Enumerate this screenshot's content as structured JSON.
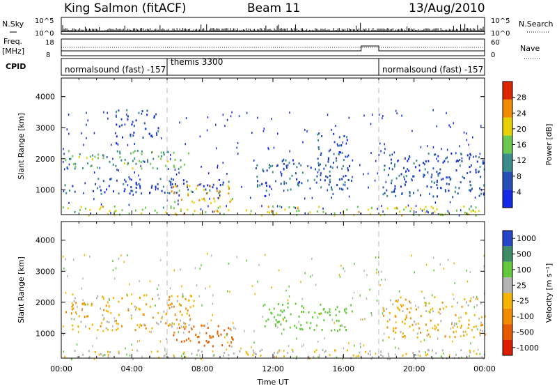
{
  "header": {
    "station": "King Salmon (fitACF)",
    "beam": "Beam 11",
    "date": "13/Aug/2010"
  },
  "status_panels": {
    "nsky_label": "N.Sky",
    "nsearch_label": "N.Search",
    "nsky_ticks": [
      "10^5",
      "10^0"
    ],
    "nsky_right_ticks": [
      "10^5",
      "10^0"
    ],
    "freq_label_1": "Freq.",
    "freq_label_2": "[MHz]",
    "freq_ticks": [
      "18",
      "8"
    ],
    "nave_label": "Nave",
    "nave_ticks": [
      "60",
      "0"
    ],
    "cpid_label": "CPID",
    "cpid_segments": [
      {
        "label": "normalsound (fast) -157",
        "start_hour": 0,
        "end_hour": 6
      },
      {
        "label": "themis 3300",
        "start_hour": 6,
        "end_hour": 18
      },
      {
        "label": "normalsound (fast) -157",
        "start_hour": 18,
        "end_hour": 24
      }
    ]
  },
  "chart_data": [
    {
      "type": "heatmap",
      "name": "power-panel",
      "ylabel": "Slant Range [km]",
      "yticks": [
        "1000",
        "2000",
        "3000",
        "4000"
      ],
      "ylim": [
        200,
        4600
      ],
      "xlim": [
        0,
        24
      ],
      "colorbar_label": "Power [dB]",
      "colorbar_ticks": [
        "4",
        "8",
        "12",
        "16",
        "20",
        "24",
        "28"
      ],
      "colorbar_range": [
        0,
        32
      ],
      "colors": [
        "#1428e6",
        "#2850b4",
        "#3c8c8c",
        "#6cc850",
        "#e6d200",
        "#f08c00",
        "#dc2800"
      ],
      "regions": [
        {
          "t0": 0.2,
          "t1": 7.5,
          "r0": 1700,
          "r1": 2300,
          "value": 14
        },
        {
          "t0": 0.1,
          "t1": 9.5,
          "r0": 900,
          "r1": 1400,
          "value": 6
        },
        {
          "t0": 6.2,
          "t1": 9.8,
          "r0": 600,
          "r1": 1200,
          "value": 22
        },
        {
          "t0": 3.0,
          "t1": 5.5,
          "r0": 2700,
          "r1": 3600,
          "value": 6
        },
        {
          "t0": 11.0,
          "t1": 16.5,
          "r0": 1000,
          "r1": 2000,
          "value": 8
        },
        {
          "t0": 14.5,
          "t1": 16.2,
          "r0": 1900,
          "r1": 2900,
          "value": 6
        },
        {
          "t0": 18.2,
          "t1": 24,
          "r0": 800,
          "r1": 2200,
          "value": 7
        },
        {
          "t0": 0,
          "t1": 24,
          "r0": 200,
          "r1": 500,
          "value": 18
        }
      ]
    },
    {
      "type": "heatmap",
      "name": "velocity-panel",
      "xlabel": "Time UT",
      "xticks": [
        "00:00",
        "04:00",
        "08:00",
        "12:00",
        "16:00",
        "20:00",
        "00:00"
      ],
      "ylabel": "Slant Range [km]",
      "yticks": [
        "1000",
        "2000",
        "3000",
        "4000"
      ],
      "ylim": [
        200,
        4600
      ],
      "xlim": [
        0,
        24
      ],
      "colorbar_label": "Velocity [m s⁻¹]",
      "colorbar_ticks": [
        "1000",
        "500",
        "100",
        "25",
        "-25",
        "-100",
        "-500",
        "-1000"
      ],
      "colors": [
        "#2846c8",
        "#3c8c64",
        "#64c83c",
        "#b4b4b4",
        "#f5b400",
        "#f08c00",
        "#e65a00",
        "#dc1e00"
      ],
      "regions": [
        {
          "t0": 0.2,
          "t1": 7.5,
          "r0": 1100,
          "r1": 2300,
          "value": 0
        },
        {
          "t0": 6.2,
          "t1": 9.8,
          "r0": 600,
          "r1": 1300,
          "value": -150
        },
        {
          "t0": 11.5,
          "t1": 16.5,
          "r0": 1100,
          "r1": 2000,
          "value": 200
        },
        {
          "t0": 18.2,
          "t1": 24,
          "r0": 900,
          "r1": 2200,
          "value": 0
        },
        {
          "t0": 0,
          "t1": 24,
          "r0": 200,
          "r1": 500,
          "value": 50
        }
      ]
    }
  ]
}
